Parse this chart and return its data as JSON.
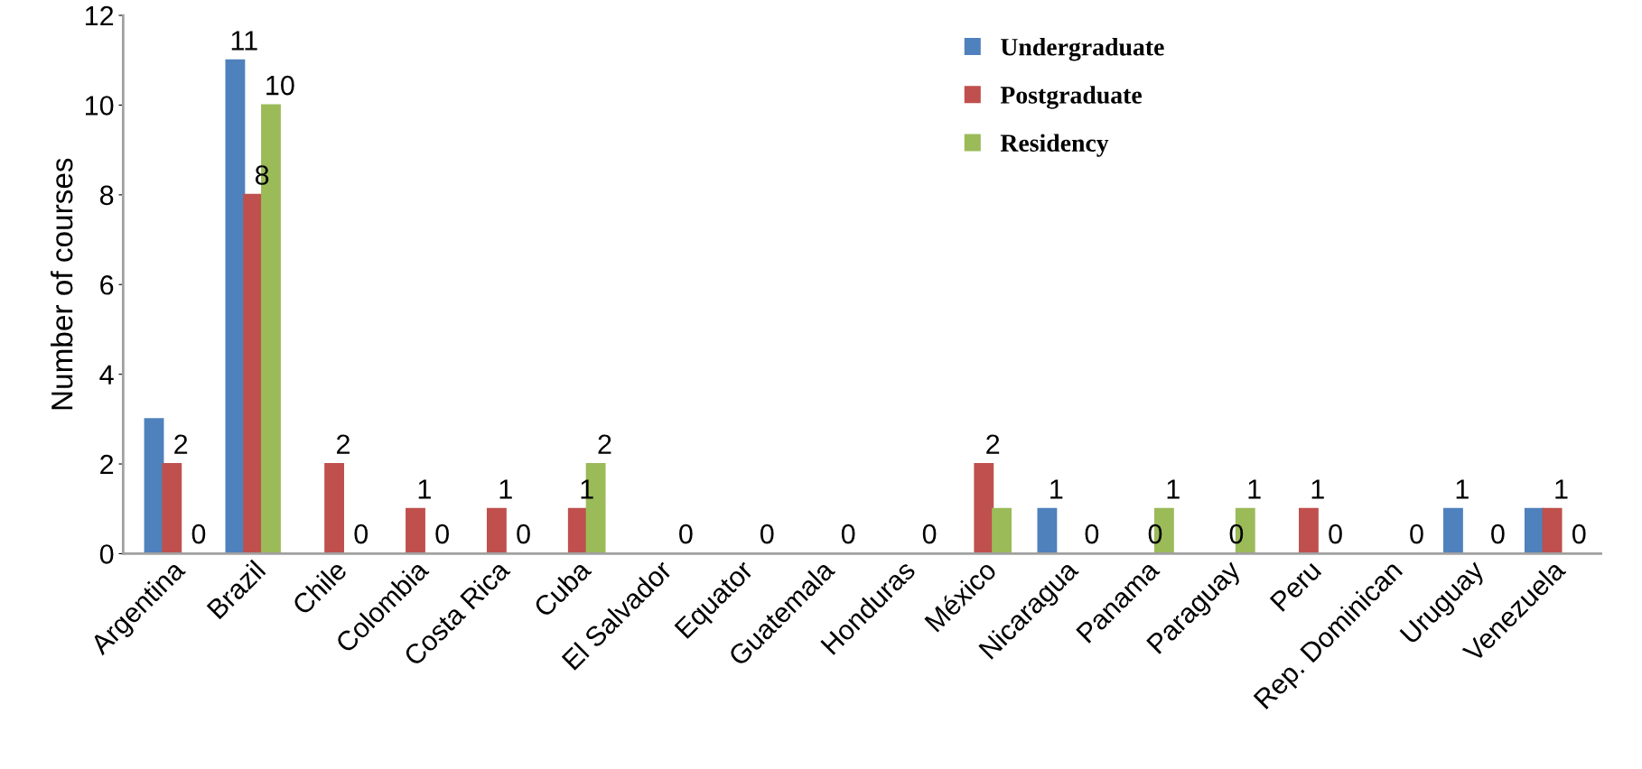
{
  "chart_data": {
    "type": "bar",
    "ylabel": "Number of courses",
    "categories": [
      "Argentina",
      "Brazil",
      "Chile",
      "Colombia",
      "Costa Rica",
      "Cuba",
      "El Salvador",
      "Equator",
      "Guatemala",
      "Honduras",
      "México",
      "Nicaragua",
      "Panama",
      "Paraguay",
      "Peru",
      "Rep. Dominican",
      "Uruguay",
      "Venezuela"
    ],
    "series": [
      {
        "name": "Undergraduate",
        "color": "#4f81bd",
        "values": [
          3,
          11,
          0,
          0,
          0,
          0,
          0,
          0,
          0,
          0,
          0,
          1,
          0,
          0,
          0,
          0,
          1,
          1
        ],
        "value_labels": [
          null,
          "11",
          null,
          null,
          null,
          null,
          null,
          null,
          null,
          null,
          null,
          "1",
          null,
          null,
          null,
          null,
          "1",
          null
        ]
      },
      {
        "name": "Postgraduate",
        "color": "#c0504d",
        "values": [
          2,
          8,
          2,
          1,
          1,
          1,
          0,
          0,
          0,
          0,
          2,
          0,
          0,
          0,
          1,
          0,
          0,
          1
        ],
        "value_labels": [
          "2",
          "8",
          "2",
          "1",
          "1",
          "1",
          null,
          null,
          null,
          null,
          "2",
          null,
          "0",
          "0",
          "1",
          null,
          null,
          "1"
        ]
      },
      {
        "name": "Residency",
        "color": "#9bbb59",
        "values": [
          0,
          10,
          0,
          0,
          0,
          2,
          0,
          0,
          0,
          0,
          1,
          0,
          1,
          1,
          0,
          0,
          0,
          0
        ],
        "value_labels": [
          "0",
          "10",
          "0",
          "0",
          "0",
          "2",
          "0",
          "0",
          "0",
          "0",
          null,
          "0",
          "1",
          "1",
          "0",
          "0",
          "0",
          "0"
        ]
      }
    ],
    "ylim": [
      0,
      12
    ],
    "yticks": [
      0,
      2,
      4,
      6,
      8,
      10,
      12
    ],
    "grid": false,
    "legend": "top right"
  }
}
